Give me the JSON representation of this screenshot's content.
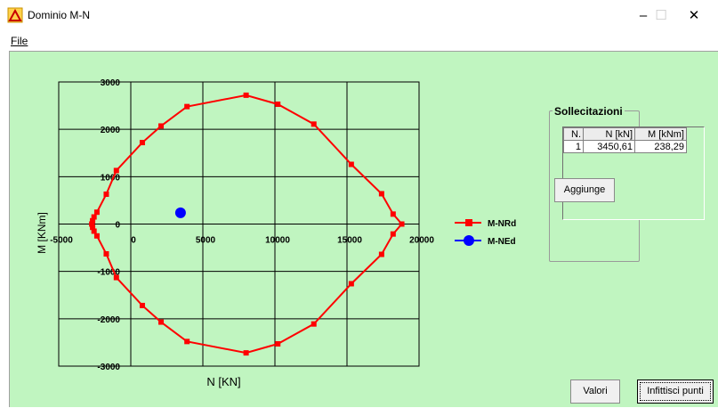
{
  "window": {
    "title": "Dominio M-N",
    "minimize": "–",
    "maximize": "☐",
    "close": "✕"
  },
  "menu": {
    "file": "File"
  },
  "chart_data": {
    "type": "line",
    "xlabel": "N [KN]",
    "ylabel": "M [KNm]",
    "xlim": [
      -5000,
      20000
    ],
    "ylim": [
      -3000,
      3000
    ],
    "xticks": [
      "-5000",
      "0",
      "5000",
      "10000",
      "15000",
      "20000"
    ],
    "yticks": [
      "3000",
      "2000",
      "1000",
      "0",
      "-1000",
      "-2000",
      "-3000"
    ],
    "grid": true,
    "legend_position": "right",
    "series": [
      {
        "name": "M-NRd",
        "color": "#ff0000",
        "marker": "square",
        "x": [
          -2700,
          -2650,
          -2550,
          -2350,
          -1700,
          -1000,
          800,
          2100,
          3900,
          8000,
          10200,
          12700,
          15300,
          17400,
          18200,
          18800,
          18200,
          17400,
          15300,
          12700,
          10200,
          8000,
          3900,
          2100,
          800,
          -1000,
          -1700,
          -2350,
          -2550,
          -2650,
          -2700
        ],
        "y": [
          0,
          70,
          150,
          250,
          630,
          1130,
          1720,
          2070,
          2480,
          2720,
          2530,
          2110,
          1260,
          640,
          210,
          0,
          -210,
          -640,
          -1260,
          -2110,
          -2530,
          -2720,
          -2480,
          -2070,
          -1720,
          -1130,
          -630,
          -250,
          -150,
          -70,
          0
        ]
      },
      {
        "name": "M-NEd",
        "color": "#0000ff",
        "marker": "circle",
        "x": [
          3450.61
        ],
        "y": [
          238.29
        ]
      }
    ]
  },
  "sollecitazioni": {
    "title": "Sollecitazioni",
    "headers": [
      "N.",
      "N [kN]",
      "M [kNm]"
    ],
    "rows": [
      [
        "1",
        "3450,61",
        "238,29"
      ]
    ],
    "add_button": "Aggiunge"
  },
  "buttons": {
    "valori": "Valori",
    "infittisci": "Infittisci punti"
  }
}
